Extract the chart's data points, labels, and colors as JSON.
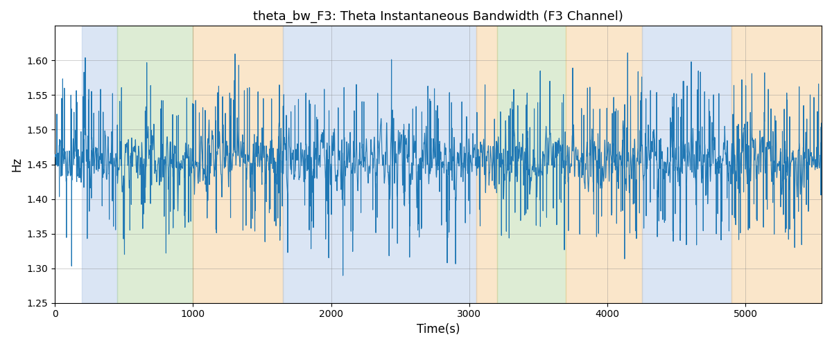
{
  "title": "theta_bw_F3: Theta Instantaneous Bandwidth (F3 Channel)",
  "xlabel": "Time(s)",
  "ylabel": "Hz",
  "xlim": [
    0,
    5550
  ],
  "ylim": [
    1.25,
    1.65
  ],
  "line_color": "#1f77b4",
  "line_width": 0.8,
  "bg_color": "white",
  "grid": true,
  "figsize": [
    12,
    5
  ],
  "dpi": 100,
  "regions": [
    {
      "xmin": 195,
      "xmax": 450,
      "color": "#aec6e8",
      "alpha": 0.45
    },
    {
      "xmin": 450,
      "xmax": 1000,
      "color": "#b5d5a0",
      "alpha": 0.45
    },
    {
      "xmin": 1000,
      "xmax": 1650,
      "color": "#f5c98a",
      "alpha": 0.45
    },
    {
      "xmin": 1650,
      "xmax": 3050,
      "color": "#aec6e8",
      "alpha": 0.45
    },
    {
      "xmin": 3050,
      "xmax": 3200,
      "color": "#f5c98a",
      "alpha": 0.45
    },
    {
      "xmin": 3200,
      "xmax": 3700,
      "color": "#b5d5a0",
      "alpha": 0.45
    },
    {
      "xmin": 3700,
      "xmax": 4250,
      "color": "#f5c98a",
      "alpha": 0.45
    },
    {
      "xmin": 4250,
      "xmax": 4900,
      "color": "#aec6e8",
      "alpha": 0.45
    },
    {
      "xmin": 4900,
      "xmax": 5550,
      "color": "#f5c98a",
      "alpha": 0.45
    }
  ],
  "seed": 1234,
  "n_points": 5500,
  "base_mean": 1.455,
  "yticks": [
    1.25,
    1.3,
    1.35,
    1.4,
    1.45,
    1.5,
    1.55,
    1.6
  ],
  "xticks": [
    0,
    1000,
    2000,
    3000,
    4000,
    5000
  ]
}
